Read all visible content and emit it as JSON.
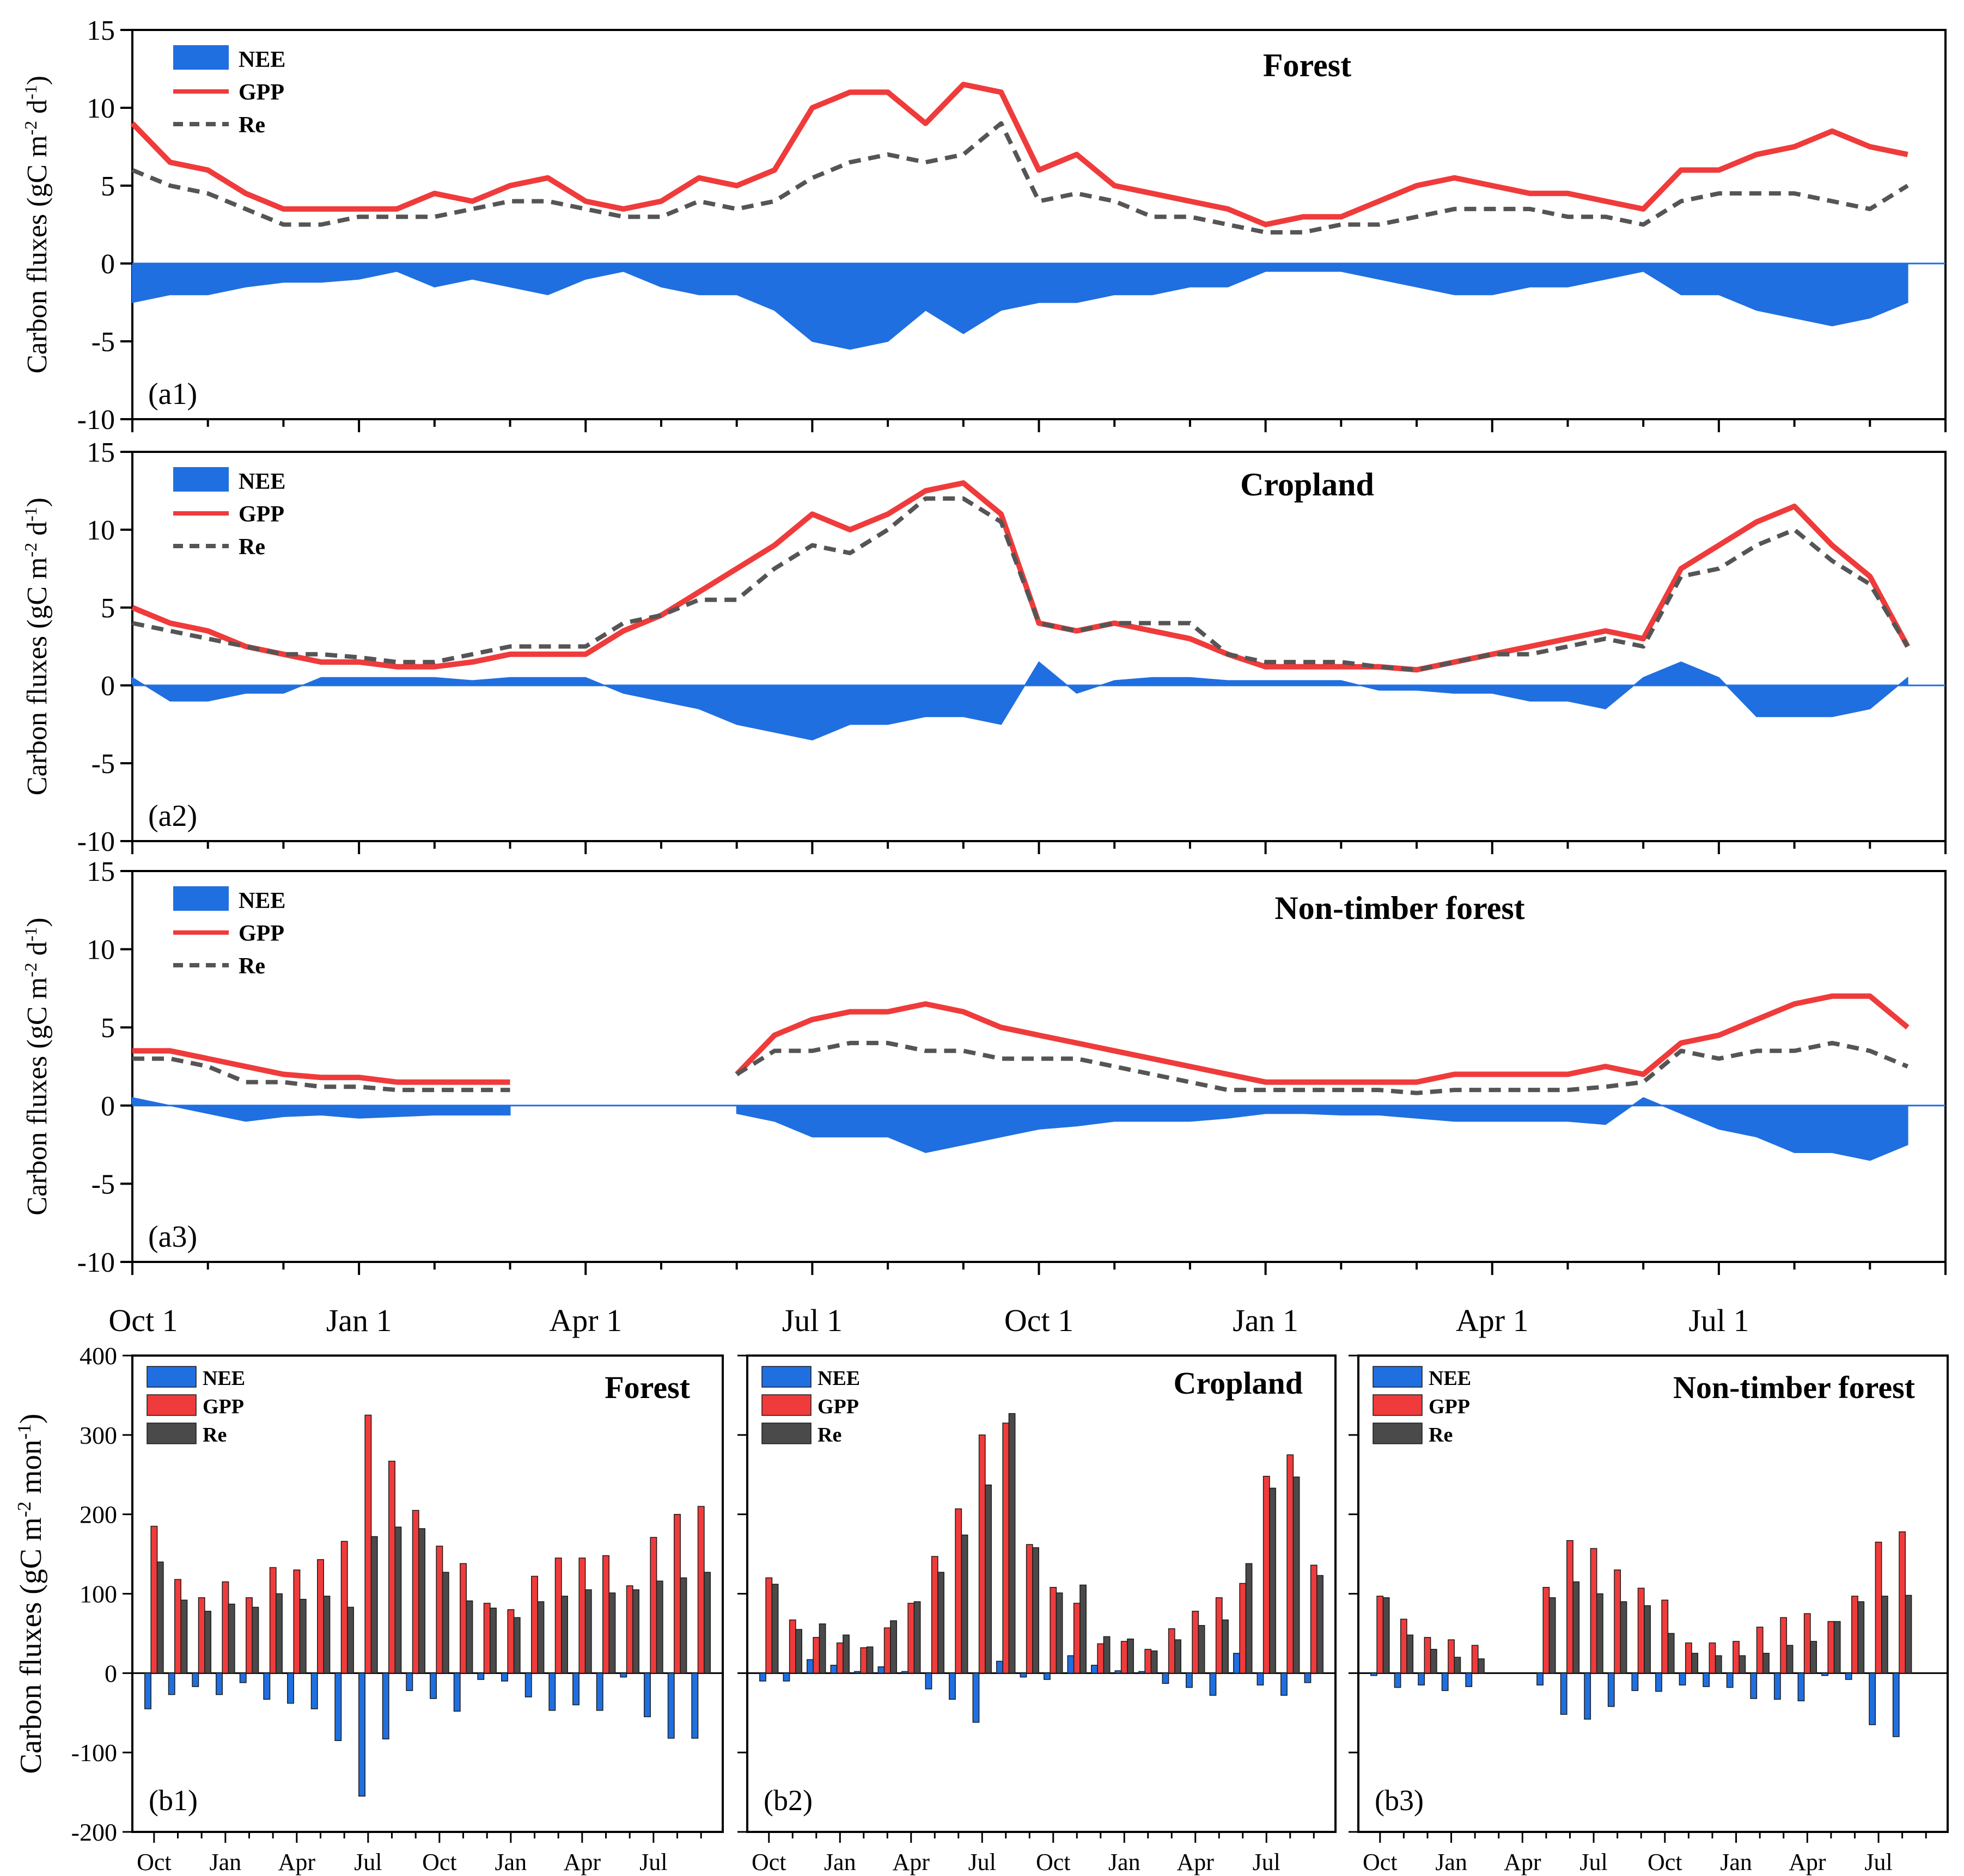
{
  "figure": {
    "colors": {
      "nee": "#1f6fe0",
      "gpp": "#ef3b3b",
      "re": "#555555",
      "re_bar": "#4a4a4a",
      "axis": "#000000"
    },
    "legend_labels": {
      "nee": "NEE",
      "gpp": "GPP",
      "re": "Re"
    },
    "date_axis": {
      "ticks_per_month": true,
      "labels": [
        {
          "text": "Oct 1",
          "month_index": 0
        },
        {
          "text": "Jan 1",
          "month_index": 3
        },
        {
          "text": "Apr 1",
          "month_index": 6
        },
        {
          "text": "Jul 1",
          "month_index": 9
        },
        {
          "text": "Oct 1",
          "month_index": 12
        },
        {
          "text": "Jan 1",
          "month_index": 15
        },
        {
          "text": "Apr 1",
          "month_index": 18
        },
        {
          "text": "Jul 1",
          "month_index": 21
        }
      ]
    }
  },
  "chart_data": [
    {
      "id": "a1",
      "type": "area",
      "title": "Forest",
      "panel_label": "(a1)",
      "ylabel": "Carbon fluxes (gC m⁻² d⁻¹)",
      "ylim": [
        -10,
        15
      ],
      "yticks": [
        15,
        10,
        5,
        0,
        -5,
        -10
      ],
      "x_unit": "months since Oct 1",
      "x": [
        0,
        0.5,
        1,
        1.5,
        2,
        2.5,
        3,
        3.5,
        4,
        4.5,
        5,
        5.5,
        6,
        6.5,
        7,
        7.5,
        8,
        8.5,
        9,
        9.5,
        10,
        10.5,
        11,
        11.5,
        12,
        12.5,
        13,
        13.5,
        14,
        14.5,
        15,
        15.5,
        16,
        16.5,
        17,
        17.5,
        18,
        18.5,
        19,
        19.5,
        20,
        20.5,
        21,
        21.5,
        22,
        22.5,
        23,
        23.5
      ],
      "series": [
        {
          "name": "GPP",
          "values": [
            9,
            6.5,
            6,
            4.5,
            3.5,
            3.5,
            3.5,
            3.5,
            4.5,
            4,
            5,
            5.5,
            4,
            3.5,
            4,
            5.5,
            5,
            6,
            10,
            11,
            11,
            9,
            11.5,
            11,
            6,
            7,
            5,
            4.5,
            4,
            3.5,
            2.5,
            3,
            3,
            4,
            5,
            5.5,
            5,
            4.5,
            4.5,
            4,
            3.5,
            6,
            6,
            7,
            7.5,
            8.5,
            7.5,
            7
          ]
        },
        {
          "name": "Re",
          "values": [
            6,
            5,
            4.5,
            3.5,
            2.5,
            2.5,
            3,
            3,
            3,
            3.5,
            4,
            4,
            3.5,
            3,
            3,
            4,
            3.5,
            4,
            5.5,
            6.5,
            7,
            6.5,
            7,
            9,
            4,
            4.5,
            4,
            3,
            3,
            2.5,
            2,
            2,
            2.5,
            2.5,
            3,
            3.5,
            3.5,
            3.5,
            3,
            3,
            2.5,
            4,
            4.5,
            4.5,
            4.5,
            4,
            3.5,
            5
          ]
        },
        {
          "name": "NEE",
          "values": [
            -2.5,
            -2,
            -2,
            -1.5,
            -1.2,
            -1.2,
            -1,
            -0.5,
            -1.5,
            -1,
            -1.5,
            -2,
            -1,
            -0.5,
            -1.5,
            -2,
            -2,
            -3,
            -5,
            -5.5,
            -5,
            -3,
            -4.5,
            -3,
            -2.5,
            -2.5,
            -2,
            -2,
            -1.5,
            -1.5,
            -0.5,
            -0.5,
            -0.5,
            -1,
            -1.5,
            -2,
            -2,
            -1.5,
            -1.5,
            -1,
            -0.5,
            -2,
            -2,
            -3,
            -3.5,
            -4,
            -3.5,
            -2.5
          ]
        }
      ],
      "legend": [
        "NEE",
        "GPP",
        "Re"
      ],
      "legend_position": "top-left"
    },
    {
      "id": "a2",
      "type": "area",
      "title": "Cropland",
      "panel_label": "(a2)",
      "ylabel": "Carbon fluxes (gC m⁻² d⁻¹)",
      "ylim": [
        -10,
        15
      ],
      "yticks": [
        15,
        10,
        5,
        0,
        -5,
        -10
      ],
      "x_unit": "months since Oct 1",
      "x": [
        0,
        0.5,
        1,
        1.5,
        2,
        2.5,
        3,
        3.5,
        4,
        4.5,
        5,
        5.5,
        6,
        6.5,
        7,
        7.5,
        8,
        8.5,
        9,
        9.5,
        10,
        10.5,
        11,
        11.5,
        12,
        12.5,
        13,
        13.5,
        14,
        14.5,
        15,
        15.5,
        16,
        16.5,
        17,
        17.5,
        18,
        18.5,
        19,
        19.5,
        20,
        20.5,
        21,
        21.5,
        22,
        22.5,
        23,
        23.5
      ],
      "series": [
        {
          "name": "GPP",
          "values": [
            5,
            4,
            3.5,
            2.5,
            2,
            1.5,
            1.5,
            1.2,
            1.2,
            1.5,
            2,
            2,
            2,
            3.5,
            4.5,
            6,
            7.5,
            9,
            11,
            10,
            11,
            12.5,
            13,
            11,
            4,
            3.5,
            4,
            3.5,
            3,
            2,
            1.2,
            1.2,
            1.2,
            1.2,
            1,
            1.5,
            2,
            2.5,
            3,
            3.5,
            3,
            7.5,
            9,
            10.5,
            11.5,
            9,
            7,
            2.5
          ]
        },
        {
          "name": "Re",
          "values": [
            4,
            3.5,
            3,
            2.5,
            2,
            2,
            1.8,
            1.5,
            1.5,
            2,
            2.5,
            2.5,
            2.5,
            4,
            4.5,
            5.5,
            5.5,
            7.5,
            9,
            8.5,
            10,
            12,
            12,
            10.5,
            4,
            3.5,
            4,
            4,
            4,
            2,
            1.5,
            1.5,
            1.5,
            1.2,
            1,
            1.5,
            2,
            2,
            2.5,
            3,
            2.5,
            7,
            7.5,
            9,
            10,
            8,
            6.5,
            2.5
          ]
        },
        {
          "name": "NEE",
          "values": [
            0.5,
            -1,
            -1,
            -0.5,
            -0.5,
            0.5,
            0.5,
            0.5,
            0.5,
            0.3,
            0.5,
            0.5,
            0.5,
            -0.5,
            -1,
            -1.5,
            -2.5,
            -3,
            -3.5,
            -2.5,
            -2.5,
            -2,
            -2,
            -2.5,
            1.5,
            -0.5,
            0.3,
            0.5,
            0.5,
            0.3,
            0.3,
            0.3,
            0.3,
            -0.3,
            -0.3,
            -0.5,
            -0.5,
            -1,
            -1,
            -1.5,
            0.5,
            1.5,
            0.5,
            -2,
            -2,
            -2,
            -1.5,
            0.5
          ]
        }
      ],
      "legend": [
        "NEE",
        "GPP",
        "Re"
      ],
      "legend_position": "top-left"
    },
    {
      "id": "a3",
      "type": "area",
      "title": "Non-timber forest",
      "panel_label": "(a3)",
      "ylabel": "Carbon fluxes (gC m⁻² d⁻¹)",
      "ylim": [
        -10,
        15
      ],
      "yticks": [
        15,
        10,
        5,
        0,
        -5,
        -10
      ],
      "x_unit": "months since Oct 1",
      "x": [
        0,
        0.5,
        1,
        1.5,
        2,
        2.5,
        3,
        3.5,
        4,
        4.5,
        5,
        5.5,
        6,
        6.5,
        7,
        7.5,
        8,
        8.5,
        9,
        9.5,
        10,
        10.5,
        11,
        11.5,
        12,
        12.5,
        13,
        13.5,
        14,
        14.5,
        15,
        15.5,
        16,
        16.5,
        17,
        17.5,
        18,
        18.5,
        19,
        19.5,
        20,
        20.5,
        21,
        21.5,
        22,
        22.5,
        23,
        23.5
      ],
      "series": [
        {
          "name": "GPP",
          "values": [
            3.5,
            3.5,
            3,
            2.5,
            2,
            1.8,
            1.8,
            1.5,
            1.5,
            1.5,
            1.5,
            null,
            null,
            null,
            null,
            null,
            2,
            4.5,
            5.5,
            6,
            6,
            6.5,
            6,
            5,
            4.5,
            4,
            3.5,
            3,
            2.5,
            2,
            1.5,
            1.5,
            1.5,
            1.5,
            1.5,
            2,
            2,
            2,
            2,
            2.5,
            2,
            4,
            4.5,
            5.5,
            6.5,
            7,
            7,
            5
          ]
        },
        {
          "name": "Re",
          "values": [
            3,
            3,
            2.5,
            1.5,
            1.5,
            1.2,
            1.2,
            1,
            1,
            1,
            1,
            null,
            null,
            null,
            null,
            null,
            2,
            3.5,
            3.5,
            4,
            4,
            3.5,
            3.5,
            3,
            3,
            3,
            2.5,
            2,
            1.5,
            1,
            1,
            1,
            1,
            1,
            0.8,
            1,
            1,
            1,
            1,
            1.2,
            1.5,
            3.5,
            3,
            3.5,
            3.5,
            4,
            3.5,
            2.5
          ]
        },
        {
          "name": "NEE",
          "values": [
            0.5,
            0,
            -0.5,
            -1,
            -0.7,
            -0.6,
            -0.8,
            -0.7,
            -0.6,
            -0.6,
            -0.6,
            null,
            null,
            null,
            null,
            null,
            -0.5,
            -1,
            -2,
            -2,
            -2,
            -3,
            -2.5,
            -2,
            -1.5,
            -1.3,
            -1,
            -1,
            -1,
            -0.8,
            -0.5,
            -0.5,
            -0.6,
            -0.6,
            -0.8,
            -1,
            -1,
            -1,
            -1,
            -1.2,
            0.5,
            -0.5,
            -1.5,
            -2,
            -3,
            -3,
            -3.5,
            -2.5
          ]
        }
      ],
      "legend": [
        "NEE",
        "GPP",
        "Re"
      ],
      "legend_position": "top-left"
    },
    {
      "id": "b1",
      "type": "bar",
      "title": "Forest",
      "panel_label": "(b1)",
      "ylabel": "Carbon fluxes (gC m⁻² mon⁻¹)",
      "ylim": [
        -200,
        400
      ],
      "yticks": [
        400,
        300,
        200,
        100,
        0,
        -100,
        -200
      ],
      "categories": [
        "Oct",
        "Nov",
        "Dec",
        "Jan",
        "Feb",
        "Mar",
        "Apr",
        "May",
        "Jun",
        "Jul",
        "Aug",
        "Sep",
        "Oct",
        "Nov",
        "Dec",
        "Jan",
        "Feb",
        "Mar",
        "Apr",
        "May",
        "Jun",
        "Jul",
        "Aug",
        "Sep"
      ],
      "category_labels": [
        "Oct",
        "Jan",
        "Apr",
        "Jul",
        "Oct",
        "Jan",
        "Apr",
        "Jul"
      ],
      "series": [
        {
          "name": "NEE",
          "values": [
            -45,
            -27,
            -17,
            -27,
            -12,
            -33,
            -38,
            -45,
            -85,
            -155,
            -83,
            -22,
            -32,
            -48,
            -8,
            -10,
            -30,
            -47,
            -40,
            -47,
            -5,
            -55,
            -82,
            -82
          ]
        },
        {
          "name": "GPP",
          "values": [
            185,
            118,
            95,
            115,
            95,
            133,
            130,
            143,
            166,
            325,
            267,
            205,
            160,
            138,
            88,
            80,
            122,
            145,
            145,
            148,
            110,
            171,
            200,
            210
          ]
        },
        {
          "name": "Re",
          "values": [
            140,
            92,
            78,
            87,
            83,
            100,
            93,
            97,
            83,
            172,
            184,
            182,
            127,
            91,
            82,
            70,
            90,
            97,
            105,
            101,
            105,
            116,
            120,
            127
          ]
        }
      ],
      "legend": [
        "NEE",
        "GPP",
        "Re"
      ],
      "legend_position": "top-left"
    },
    {
      "id": "b2",
      "type": "bar",
      "title": "Cropland",
      "panel_label": "(b2)",
      "ylabel": "",
      "ylim": [
        -200,
        400
      ],
      "categories": [
        "Oct",
        "Nov",
        "Dec",
        "Jan",
        "Feb",
        "Mar",
        "Apr",
        "May",
        "Jun",
        "Jul",
        "Aug",
        "Sep",
        "Oct",
        "Nov",
        "Dec",
        "Jan",
        "Feb",
        "Mar",
        "Apr",
        "May",
        "Jun",
        "Jul",
        "Aug",
        "Sep"
      ],
      "category_labels": [
        "Oct",
        "Jan",
        "Apr",
        "Jul",
        "Oct",
        "Jan",
        "Apr",
        "Jul"
      ],
      "series": [
        {
          "name": "NEE",
          "values": [
            -10,
            -10,
            17,
            10,
            2,
            8,
            2,
            -20,
            -33,
            -62,
            15,
            -5,
            -8,
            22,
            10,
            3,
            2,
            -13,
            -18,
            -28,
            25,
            -15,
            -28,
            -12
          ]
        },
        {
          "name": "GPP",
          "values": [
            120,
            67,
            45,
            38,
            32,
            57,
            88,
            147,
            207,
            300,
            315,
            162,
            108,
            88,
            37,
            40,
            30,
            56,
            78,
            95,
            113,
            248,
            275,
            136
          ]
        },
        {
          "name": "Re",
          "values": [
            112,
            55,
            62,
            48,
            33,
            66,
            90,
            127,
            174,
            237,
            327,
            158,
            101,
            111,
            46,
            43,
            28,
            42,
            60,
            67,
            138,
            233,
            247,
            123
          ]
        }
      ],
      "legend": [
        "NEE",
        "GPP",
        "Re"
      ],
      "legend_position": "top-left"
    },
    {
      "id": "b3",
      "type": "bar",
      "title": "Non-timber forest",
      "panel_label": "(b3)",
      "ylabel": "",
      "ylim": [
        -200,
        400
      ],
      "categories": [
        "Oct",
        "Nov",
        "Dec",
        "Jan",
        "Feb",
        "Mar",
        "Apr",
        "May",
        "Jun",
        "Jul",
        "Aug",
        "Sep",
        "Oct",
        "Nov",
        "Dec",
        "Jan",
        "Feb",
        "Mar",
        "Apr",
        "May",
        "Jun",
        "Jul",
        "Aug",
        "Sep"
      ],
      "category_labels": [
        "Oct",
        "Jan",
        "Apr",
        "Jul",
        "Oct",
        "Jan",
        "Apr",
        "Jul"
      ],
      "series": [
        {
          "name": "NEE",
          "values": [
            -3,
            -18,
            -15,
            -22,
            -17,
            null,
            null,
            -15,
            -52,
            -58,
            -42,
            -22,
            -23,
            -15,
            -17,
            -18,
            -32,
            -33,
            -35,
            -3,
            -8,
            -65,
            -80,
            null
          ]
        },
        {
          "name": "GPP",
          "values": [
            97,
            68,
            45,
            42,
            35,
            null,
            null,
            108,
            167,
            157,
            130,
            107,
            92,
            38,
            38,
            40,
            58,
            70,
            75,
            65,
            97,
            165,
            178,
            null
          ]
        },
        {
          "name": "Re",
          "values": [
            95,
            48,
            30,
            20,
            18,
            null,
            null,
            95,
            115,
            100,
            90,
            85,
            50,
            25,
            22,
            22,
            25,
            35,
            40,
            65,
            90,
            97,
            98,
            null
          ]
        }
      ],
      "legend": [
        "NEE",
        "GPP",
        "Re"
      ],
      "legend_position": "top-left"
    }
  ]
}
